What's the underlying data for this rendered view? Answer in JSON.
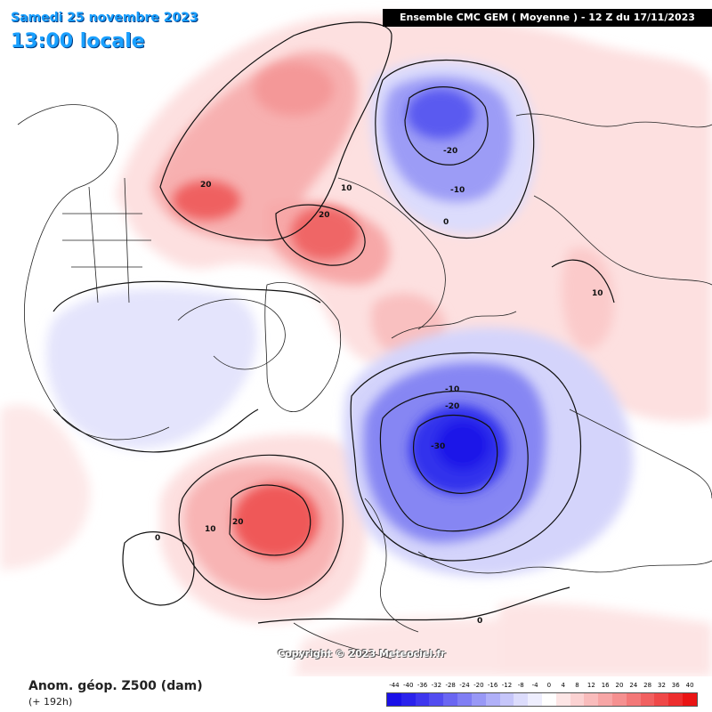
{
  "header": {
    "date": "Samedi 25 novembre 2023",
    "time": "13:00 locale",
    "model": "Ensemble CMC GEM  ( Moyenne )  -  12 Z du 17/11/2023"
  },
  "footer": {
    "parameter": "Anom. géop. Z500 (dam)",
    "lead_time": "(+ 192h)",
    "copyright": "Copyright © 2023 Meteociel.fr"
  },
  "legend": {
    "labels": [
      "-44",
      "-40",
      "-36",
      "-32",
      "-28",
      "-24",
      "-20",
      "-16",
      "-12",
      "-8",
      "-4",
      "0",
      "4",
      "8",
      "12",
      "16",
      "20",
      "24",
      "28",
      "32",
      "36",
      "40"
    ],
    "colors": [
      "#1a10e8",
      "#2a22ec",
      "#3e36ee",
      "#524cf0",
      "#6a66f2",
      "#807ef4",
      "#9898f6",
      "#b0b0f8",
      "#c6c6fa",
      "#dcdcfc",
      "#eeeefe",
      "#ffffff",
      "#fde6e6",
      "#fbd2d2",
      "#f9bcbc",
      "#f7a6a6",
      "#f59090",
      "#f37878",
      "#f16060",
      "#ef4848",
      "#ed2e2e",
      "#ea1414"
    ]
  },
  "contour_labels": {
    "alaska_plus20": "20",
    "beaufort_plus10": "10",
    "siberia_plus20": "20",
    "kamchatka_minus20": "-20",
    "kamchatka_minus10": "-10",
    "pacific_zero": "0",
    "china_plus10": "10",
    "europe_minus10": "-10",
    "europe_minus20": "-20",
    "europe_minus30": "-30",
    "atlantic_plus20": "20",
    "atlantic_plus10": "10",
    "atlantic_zero": "0",
    "south_zero": "0"
  },
  "colors": {
    "title_blue": "#1aa0ff",
    "positive_light": "#fde6e6",
    "negative_light": "#e8e8fd"
  }
}
